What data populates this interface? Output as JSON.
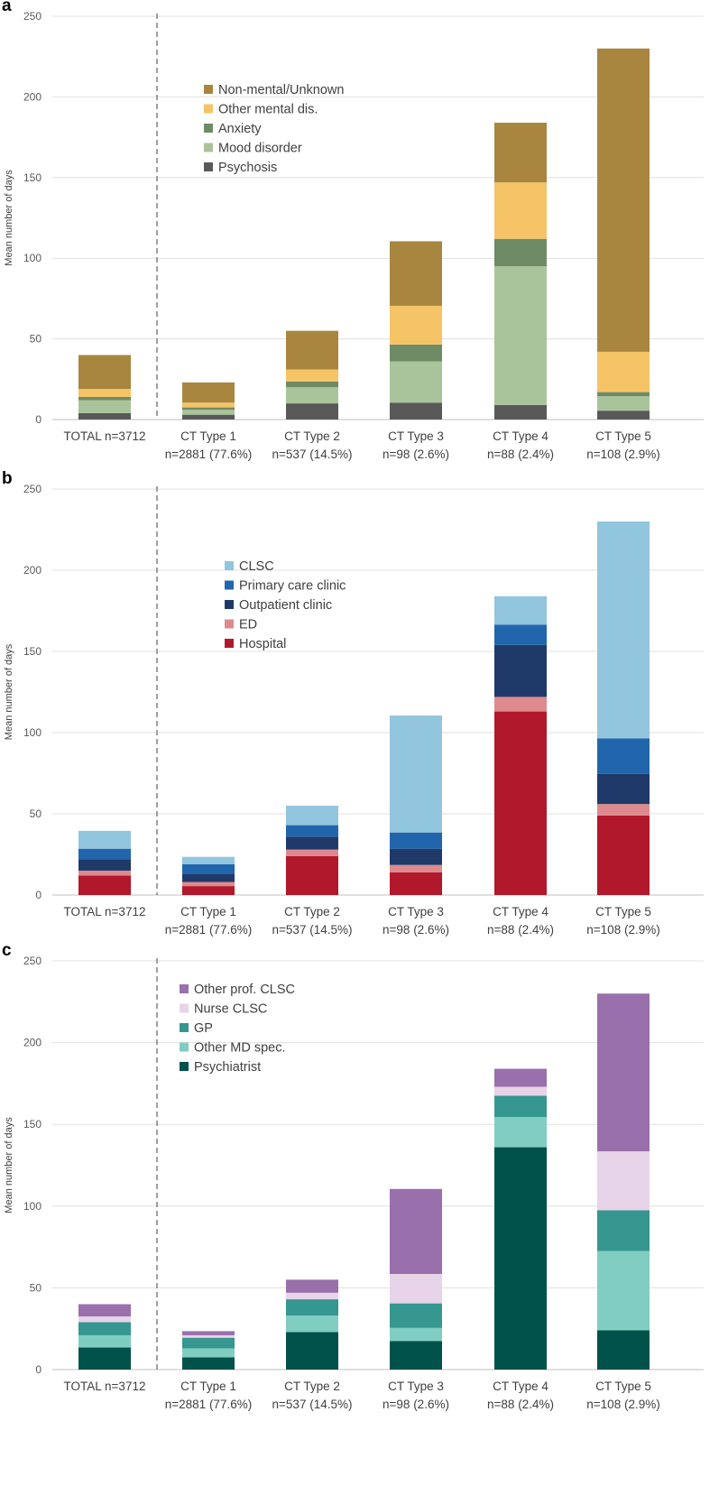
{
  "chart_data": [
    {
      "panel_label": "a",
      "type": "stacked-bar",
      "ylabel": "Mean number of days",
      "ylim": [
        0,
        250
      ],
      "yticks": [
        0,
        50,
        100,
        150,
        200,
        250
      ],
      "categories": [
        [
          "TOTAL n=3712"
        ],
        [
          "CT Type 1",
          "n=2881 (77.6%)"
        ],
        [
          "CT Type 2",
          "n=537 (14.5%)"
        ],
        [
          "CT Type 3",
          "n=98 (2.6%)"
        ],
        [
          "CT Type 4",
          "n=88 (2.4%)"
        ],
        [
          "CT Type 5",
          "n=108 (2.9%)"
        ]
      ],
      "series": [
        {
          "name": "Psychosis",
          "color": "#595959",
          "values": [
            4,
            3,
            10,
            10.5,
            9,
            5.5
          ]
        },
        {
          "name": "Mood disorder",
          "color": "#a9c49a",
          "values": [
            8,
            3,
            10,
            25.5,
            86,
            9
          ]
        },
        {
          "name": "Anxiety",
          "color": "#6e8b66",
          "values": [
            2,
            1.5,
            3.5,
            10.5,
            17,
            2.5
          ]
        },
        {
          "name": "Other mental dis.",
          "color": "#f5c466",
          "values": [
            5,
            3,
            7.5,
            24,
            35,
            25
          ]
        },
        {
          "name": "Non-mental/Unknown",
          "color": "#a8863f",
          "values": [
            21,
            12.5,
            24,
            40,
            37,
            188
          ]
        }
      ],
      "legend_order": [
        "Non-mental/Unknown",
        "Other mental dis.",
        "Anxiety",
        "Mood disorder",
        "Psychosis"
      ]
    },
    {
      "panel_label": "b",
      "type": "stacked-bar",
      "ylabel": "Mean number of days",
      "ylim": [
        0,
        250
      ],
      "yticks": [
        0,
        50,
        100,
        150,
        200,
        250
      ],
      "categories": [
        [
          "TOTAL n=3712"
        ],
        [
          "CT Type 1",
          "n=2881 (77.6%)"
        ],
        [
          "CT Type 2",
          "n=537 (14.5%)"
        ],
        [
          "CT Type 3",
          "n=98 (2.6%)"
        ],
        [
          "CT Type 4",
          "n=88 (2.4%)"
        ],
        [
          "CT Type 5",
          "n=108 (2.9%)"
        ]
      ],
      "series": [
        {
          "name": "Hospital",
          "color": "#b2182b",
          "values": [
            12,
            5.5,
            24,
            14,
            113,
            49
          ]
        },
        {
          "name": "ED",
          "color": "#de8a8f",
          "values": [
            3,
            2.5,
            4,
            4.5,
            9,
            7
          ]
        },
        {
          "name": "Outpatient clinic",
          "color": "#1f3a68",
          "values": [
            7,
            5,
            8,
            10,
            32,
            18.5
          ]
        },
        {
          "name": "Primary care clinic",
          "color": "#2166ac",
          "values": [
            6.5,
            6,
            7,
            10,
            12.5,
            22
          ]
        },
        {
          "name": "CLSC",
          "color": "#92c5de",
          "values": [
            11,
            4.5,
            12,
            72,
            17.5,
            133.5
          ]
        }
      ],
      "legend_order": [
        "CLSC",
        "Primary care clinic",
        "Outpatient clinic",
        "ED",
        "Hospital"
      ]
    },
    {
      "panel_label": "c",
      "type": "stacked-bar",
      "ylabel": "Mean number of days",
      "ylim": [
        0,
        250
      ],
      "yticks": [
        0,
        50,
        100,
        150,
        200,
        250
      ],
      "categories": [
        [
          "TOTAL n=3712"
        ],
        [
          "CT Type 1",
          "n=2881 (77.6%)"
        ],
        [
          "CT Type 2",
          "n=537 (14.5%)"
        ],
        [
          "CT Type 3",
          "n=98 (2.6%)"
        ],
        [
          "CT Type 4",
          "n=88 (2.4%)"
        ],
        [
          "CT Type 5",
          "n=108 (2.9%)"
        ]
      ],
      "series": [
        {
          "name": "Psychiatrist",
          "color": "#01524a",
          "values": [
            13.5,
            7.5,
            23,
            17.5,
            136,
            24
          ]
        },
        {
          "name": "Other MD spec.",
          "color": "#80cdc1",
          "values": [
            7.5,
            5.5,
            10,
            8,
            18.5,
            48.5
          ]
        },
        {
          "name": "GP",
          "color": "#35978f",
          "values": [
            8,
            6.5,
            10,
            15,
            13,
            25
          ]
        },
        {
          "name": "Nurse CLSC",
          "color": "#e7d4e8",
          "values": [
            3.5,
            1.5,
            4,
            18,
            5.5,
            36
          ]
        },
        {
          "name": "Other prof. CLSC",
          "color": "#9970ab",
          "values": [
            7.5,
            2.5,
            8,
            52,
            11,
            96.5
          ]
        }
      ],
      "legend_order": [
        "Other prof. CLSC",
        "Nurse CLSC",
        "GP",
        "Other MD spec.",
        "Psychiatrist"
      ]
    }
  ]
}
